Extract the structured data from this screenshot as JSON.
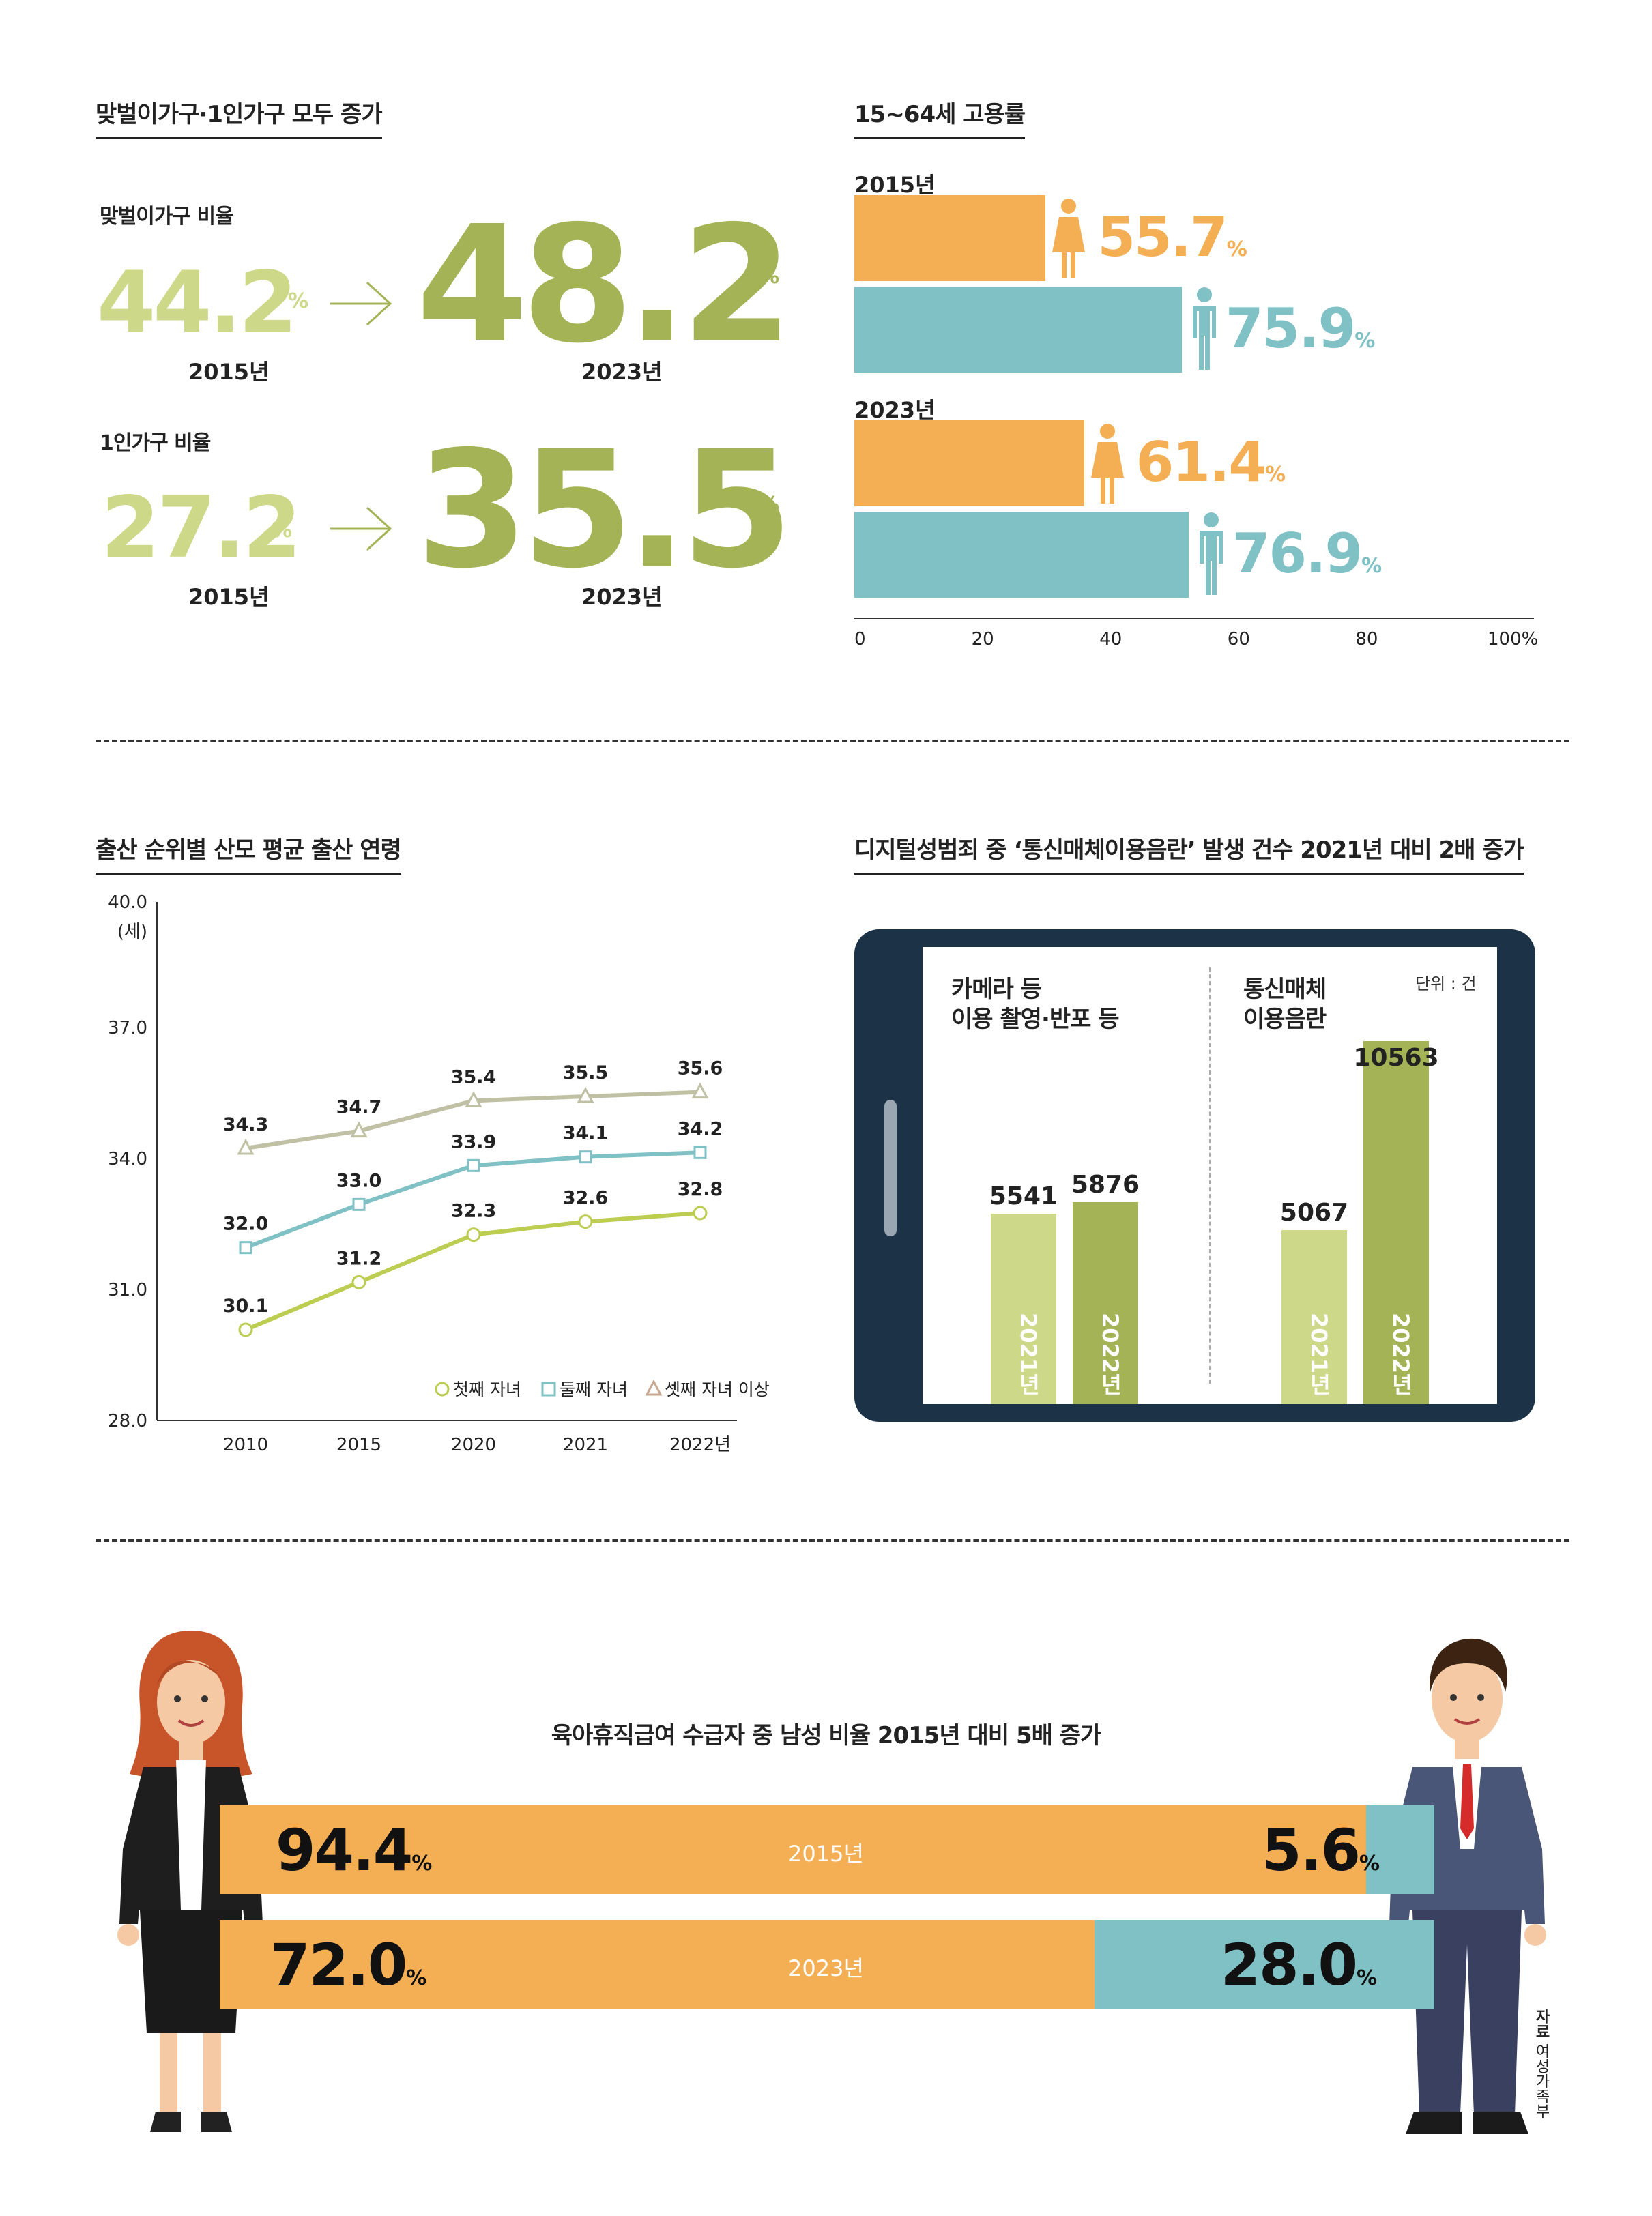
{
  "households": {
    "title": "맞벌이가구·1인가구 모두 증가",
    "dual": {
      "label": "맞벌이가구 비율",
      "from": "44.2",
      "to": "48.2",
      "from_year": "2015년",
      "to_year": "2023년",
      "unit": "%"
    },
    "single": {
      "label": "1인가구 비율",
      "from": "27.2",
      "to": "35.5",
      "from_year": "2015년",
      "to_year": "2023년",
      "unit": "%"
    }
  },
  "employment": {
    "title": "15~64세 고용률",
    "year_a": "2015년",
    "year_b": "2023년",
    "female_2015": "55.7",
    "male_2015": "75.9",
    "female_2023": "61.4",
    "male_2023": "76.9",
    "unit": "%",
    "ticks": [
      "0",
      "20",
      "40",
      "60",
      "80",
      "100%"
    ]
  },
  "age": {
    "title": "출산 순위별 산모 평균 출산 연령",
    "unit_label": "(세)"
  },
  "crime": {
    "title": "디지털성범죄 중 ‘통신매체이용음란’ 발생 건수 2021년 대비 2배 증가",
    "unit": "단위 : 건",
    "group1_line1": "카메라 등",
    "group1_line2": "이용 촬영·반포 등",
    "group2_line1": "통신매체",
    "group2_line2": "이용음란",
    "bars": [
      {
        "year": "2021년",
        "value": "5541"
      },
      {
        "year": "2022년",
        "value": "5876"
      },
      {
        "year": "2021년",
        "value": "5067"
      },
      {
        "year": "2022년",
        "value": "10563"
      }
    ]
  },
  "leave": {
    "title": "육아휴직급여 수급자 중 남성 비율 2015년 대비 5배 증가",
    "row1": {
      "year": "2015년",
      "female": "94.4",
      "male": "5.6"
    },
    "row2": {
      "year": "2023년",
      "female": "72.0",
      "male": "28.0"
    },
    "unit": "%",
    "source_label": "자료",
    "source": "여성가족부"
  },
  "colors": {
    "orange": "#f4ae53",
    "teal": "#7fc1c4",
    "olive": "#a4b355",
    "light_olive": "#cdd888",
    "navy": "#1b3247",
    "grey_line": "#c0c0a4"
  },
  "chart_data": [
    {
      "type": "bar",
      "title": "15~64세 고용률",
      "categories": [
        "2015년",
        "2023년"
      ],
      "series": [
        {
          "name": "여성",
          "values": [
            55.7,
            61.4
          ]
        },
        {
          "name": "남성",
          "values": [
            75.9,
            76.9
          ]
        }
      ],
      "xlim": [
        0,
        100
      ]
    },
    {
      "type": "line",
      "title": "출산 순위별 산모 평균 출산 연령",
      "x": [
        "2010",
        "2015",
        "2020",
        "2021",
        "2022년"
      ],
      "yticks": [
        "28.0",
        "31.0",
        "34.0",
        "37.0",
        "40.0"
      ],
      "ylim": [
        28,
        40
      ],
      "ylabel": "(세)",
      "legend": "bottom-right",
      "series": [
        {
          "name": "첫째 자녀",
          "values": [
            30.1,
            31.2,
            32.3,
            32.6,
            32.8
          ],
          "labels": [
            "30.1",
            "31.2",
            "32.3",
            "32.6",
            "32.8"
          ]
        },
        {
          "name": "둘째 자녀",
          "values": [
            32.0,
            33.0,
            33.9,
            34.1,
            34.2
          ],
          "labels": [
            "32.0",
            "33.0",
            "33.9",
            "34.1",
            "34.2"
          ]
        },
        {
          "name": "셋째 자녀 이상",
          "values": [
            34.3,
            34.7,
            35.4,
            35.5,
            35.6
          ],
          "labels": [
            "34.3",
            "34.7",
            "35.4",
            "35.5",
            "35.6"
          ]
        }
      ]
    },
    {
      "type": "bar",
      "title": "디지털성범죄 중 ‘통신매체이용음란’ 발생 건수 2021년 대비 2배 증가",
      "categories": [
        "카메라 등 이용 촬영·반포 등",
        "통신매체 이용음란"
      ],
      "series": [
        {
          "name": "2021년",
          "values": [
            5541,
            5067
          ]
        },
        {
          "name": "2022년",
          "values": [
            5876,
            10563
          ]
        }
      ]
    },
    {
      "type": "bar",
      "title": "육아휴직급여 수급자 중 남성 비율 2015년 대비 5배 증가",
      "categories": [
        "2015년",
        "2023년"
      ],
      "series": [
        {
          "values": [
            94.4,
            72.0
          ]
        },
        {
          "values": [
            5.6,
            28.0
          ]
        }
      ]
    }
  ]
}
